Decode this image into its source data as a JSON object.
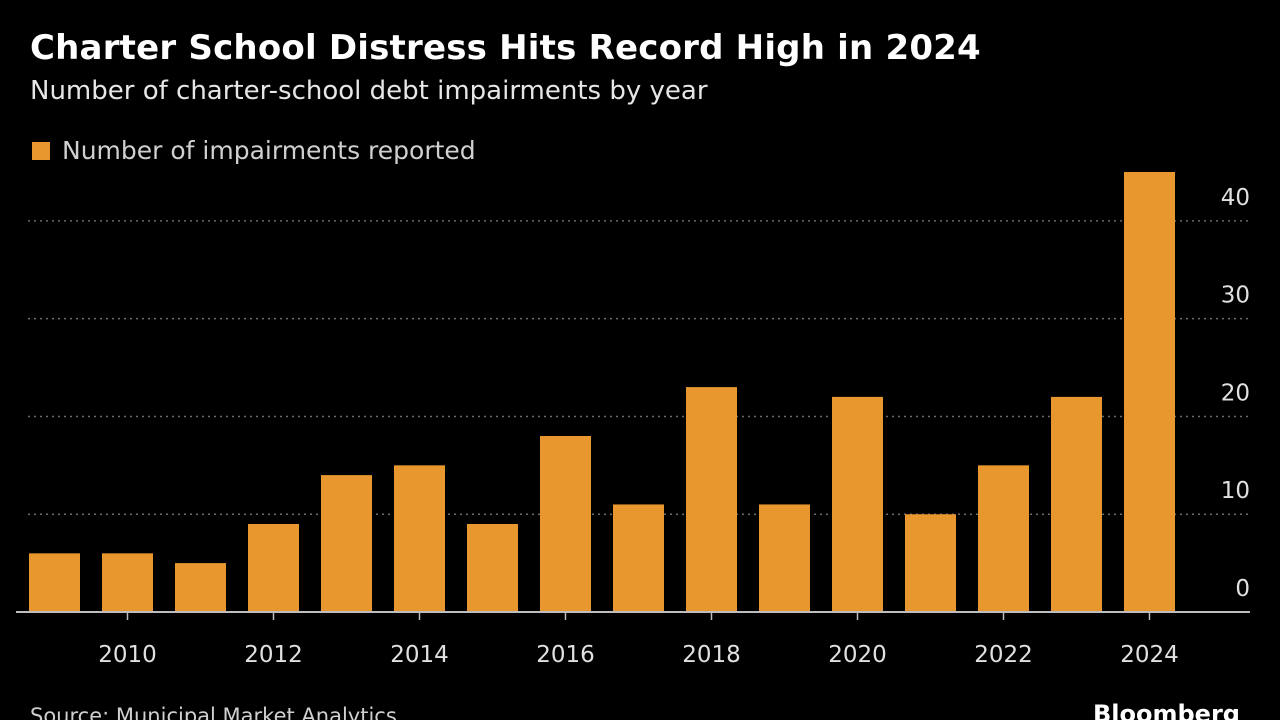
{
  "header": {
    "title": "Charter School Distress Hits Record High in 2024",
    "subtitle": "Number of charter-school debt impairments by year"
  },
  "footer": {
    "source": "Source: Municipal Market Analytics",
    "brand": "Bloomberg"
  },
  "colors": {
    "background": "#000000",
    "bar": "#E8962E",
    "grid": "#6b6b6b",
    "axis": "#bdbdbd",
    "tick_text": "#e0e0e0"
  },
  "chart_data": {
    "type": "bar",
    "legend": [
      "Number of impairments reported"
    ],
    "legend_position": "top-left",
    "categories": [
      "2009",
      "2010",
      "2011",
      "2012",
      "2013",
      "2014",
      "2015",
      "2016",
      "2017",
      "2018",
      "2019",
      "2020",
      "2021",
      "2022",
      "2023",
      "2024"
    ],
    "series": [
      {
        "name": "Number of impairments reported",
        "values": [
          6,
          6,
          5,
          9,
          14,
          15,
          9,
          18,
          11,
          23,
          11,
          22,
          10,
          15,
          22,
          45
        ]
      }
    ],
    "x_tick_labels": [
      "2010",
      "2012",
      "2014",
      "2016",
      "2018",
      "2020",
      "2022",
      "2024"
    ],
    "y_ticks": [
      0,
      10,
      20,
      30,
      40
    ],
    "ylim": [
      0,
      45
    ],
    "y_axis_side": "right",
    "grid": "horizontal dotted",
    "xlabel": "",
    "ylabel": ""
  }
}
